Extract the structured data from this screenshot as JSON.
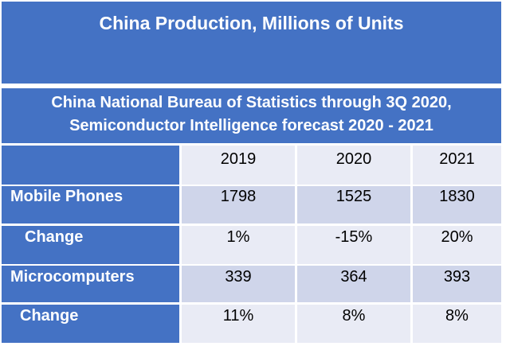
{
  "title": "China Production, Millions of Units",
  "subtitle": {
    "line1": "China National Bureau of Statistics through 3Q 2020,",
    "line2": "Semiconductor Intelligence forecast 2020 - 2021"
  },
  "table": {
    "columns": [
      "2019",
      "2020",
      "2021"
    ],
    "rows": [
      {
        "label": "Mobile Phones",
        "values": [
          "1798",
          "1525",
          "1830"
        ]
      },
      {
        "label": "Change",
        "values": [
          "1%",
          "-15%",
          "20%"
        ]
      },
      {
        "label": "Microcomputers",
        "values": [
          "339",
          "364",
          "393"
        ]
      },
      {
        "label": "Change",
        "values": [
          "11%",
          "8%",
          "8%"
        ]
      }
    ]
  }
}
